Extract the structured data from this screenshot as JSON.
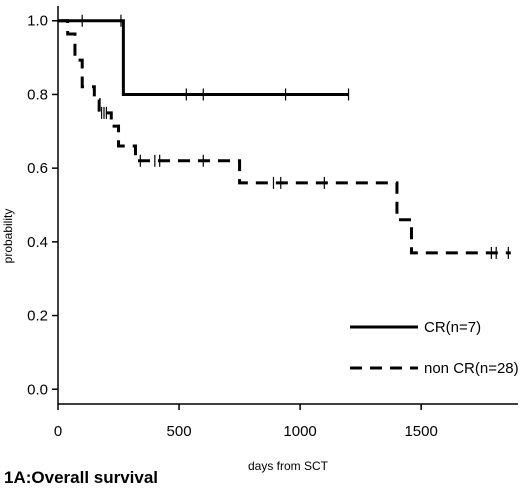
{
  "chart_data": {
    "type": "line",
    "caption": "1A:Overall survival",
    "xlabel": "days from SCT",
    "ylabel": "probability",
    "xlim": [
      0,
      1900
    ],
    "ylim": [
      -0.04,
      1.04
    ],
    "xticks": [
      0,
      500,
      1000,
      1500
    ],
    "yticks": [
      0.0,
      0.2,
      0.4,
      0.6,
      0.8,
      1.0
    ],
    "ytick_labels": [
      "0.0",
      "0.2",
      "0.4",
      "0.6",
      "0.8",
      "1.0"
    ],
    "legend_position": "bottom-right",
    "grid": false,
    "series": [
      {
        "name": "CR(n=7)",
        "style": "solid",
        "color": "#000000",
        "steps": [
          [
            0,
            1.0
          ],
          [
            270,
            0.8
          ],
          [
            1200,
            0.8
          ]
        ],
        "censored": [
          [
            100,
            1.0
          ],
          [
            260,
            1.0
          ],
          [
            530,
            0.8
          ],
          [
            600,
            0.8
          ],
          [
            940,
            0.8
          ],
          [
            1200,
            0.8
          ]
        ]
      },
      {
        "name": "non CR(n=28)",
        "style": "dashed",
        "color": "#000000",
        "steps": [
          [
            0,
            1.0
          ],
          [
            40,
            0.964
          ],
          [
            70,
            0.893
          ],
          [
            100,
            0.821
          ],
          [
            150,
            0.786
          ],
          [
            170,
            0.75
          ],
          [
            220,
            0.714
          ],
          [
            250,
            0.66
          ],
          [
            320,
            0.62
          ],
          [
            750,
            0.56
          ],
          [
            1400,
            0.46
          ],
          [
            1460,
            0.37
          ],
          [
            1870,
            0.37
          ]
        ],
        "censored": [
          [
            180,
            0.75
          ],
          [
            190,
            0.75
          ],
          [
            200,
            0.75
          ],
          [
            340,
            0.62
          ],
          [
            400,
            0.62
          ],
          [
            420,
            0.62
          ],
          [
            600,
            0.62
          ],
          [
            890,
            0.56
          ],
          [
            920,
            0.56
          ],
          [
            1100,
            0.56
          ],
          [
            1790,
            0.37
          ],
          [
            1810,
            0.37
          ],
          [
            1860,
            0.37
          ]
        ]
      }
    ]
  }
}
